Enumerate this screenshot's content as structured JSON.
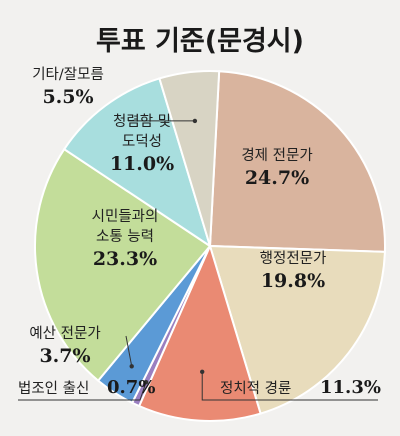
{
  "chart_data": {
    "type": "pie",
    "title": "투표 기준(문경시)",
    "slices": [
      {
        "label": "경제 전문가",
        "value": 24.7,
        "pct_label": "24.7%",
        "color": "#d9b49e"
      },
      {
        "label": "행정전문가",
        "value": 19.8,
        "pct_label": "19.8%",
        "color": "#e8dcbc"
      },
      {
        "label": "정치적 경륜",
        "value": 11.3,
        "pct_label": "11.3%",
        "color": "#ea8a73"
      },
      {
        "label": "법조인 출신",
        "value": 0.7,
        "pct_label": "0.7%",
        "color": "#9a7fc0"
      },
      {
        "label": "예산 전문가",
        "value": 3.7,
        "pct_label": "3.7%",
        "color": "#5b9ad6"
      },
      {
        "label": "시민들과의 소통 능력",
        "value": 23.3,
        "pct_label": "23.3%",
        "color": "#c3dd9a"
      },
      {
        "label": "청렴함 및 도덕성",
        "value": 11.0,
        "pct_label": "11.0%",
        "color": "#a8dede"
      },
      {
        "label": "기타/잘모름",
        "value": 5.5,
        "pct_label": "5.5%",
        "color": "#d8d4c4"
      }
    ],
    "label_lines": {
      "경제 전문가": [
        "경제 전문가"
      ],
      "행정전문가": [
        "행정전문가"
      ],
      "시민들과의 소통 능력": [
        "시민들과의",
        "소통 능력"
      ],
      "청렴함 및 도덕성": [
        "청렴함 및",
        "도덕성"
      ],
      "기타/잘모름": [
        "기타/잘모름"
      ],
      "예산 전문가": [
        "예산 전문가"
      ]
    }
  }
}
